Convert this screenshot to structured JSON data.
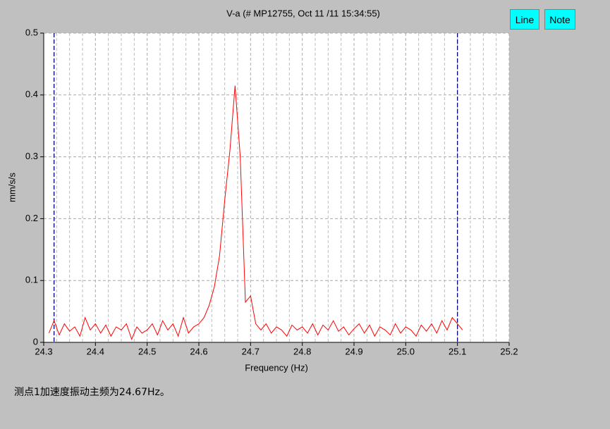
{
  "chart_data": {
    "type": "line",
    "title": "V-a  (# MP12755, Oct 11 /11 15:34:55)",
    "x_label": "Frequency (Hz)",
    "y_label": "mm/s/s",
    "x": [
      24.31,
      24.32,
      24.33,
      24.34,
      24.35,
      24.36,
      24.37,
      24.38,
      24.39,
      24.4,
      24.41,
      24.42,
      24.43,
      24.44,
      24.45,
      24.46,
      24.47,
      24.48,
      24.49,
      24.5,
      24.51,
      24.52,
      24.53,
      24.54,
      24.55,
      24.56,
      24.57,
      24.58,
      24.59,
      24.6,
      24.61,
      24.62,
      24.63,
      24.64,
      24.65,
      24.66,
      24.67,
      24.68,
      24.69,
      24.7,
      24.71,
      24.72,
      24.73,
      24.74,
      24.75,
      24.76,
      24.77,
      24.78,
      24.79,
      24.8,
      24.81,
      24.82,
      24.83,
      24.84,
      24.85,
      24.86,
      24.87,
      24.88,
      24.89,
      24.9,
      24.91,
      24.92,
      24.93,
      24.94,
      24.95,
      24.96,
      24.97,
      24.98,
      24.99,
      25.0,
      25.01,
      25.02,
      25.03,
      25.04,
      25.05,
      25.06,
      25.07,
      25.08,
      25.09,
      25.1,
      25.11
    ],
    "series": [
      {
        "color": "#ff0000",
        "values": [
          0.015,
          0.035,
          0.012,
          0.03,
          0.018,
          0.025,
          0.01,
          0.04,
          0.02,
          0.03,
          0.015,
          0.028,
          0.01,
          0.025,
          0.02,
          0.03,
          0.005,
          0.025,
          0.015,
          0.02,
          0.03,
          0.012,
          0.035,
          0.02,
          0.03,
          0.01,
          0.04,
          0.015,
          0.025,
          0.03,
          0.04,
          0.06,
          0.09,
          0.14,
          0.23,
          0.31,
          0.415,
          0.3,
          0.065,
          0.075,
          0.03,
          0.02,
          0.03,
          0.015,
          0.025,
          0.02,
          0.01,
          0.028,
          0.02,
          0.025,
          0.015,
          0.03,
          0.012,
          0.028,
          0.02,
          0.035,
          0.018,
          0.025,
          0.012,
          0.022,
          0.03,
          0.015,
          0.028,
          0.01,
          0.025,
          0.02,
          0.012,
          0.03,
          0.015,
          0.025,
          0.02,
          0.01,
          0.028,
          0.018,
          0.03,
          0.015,
          0.035,
          0.02,
          0.04,
          0.03,
          0.02
        ]
      }
    ],
    "xlim": [
      24.3,
      25.2
    ],
    "ylim": [
      0,
      0.5
    ],
    "xticks": [
      24.3,
      24.4,
      24.5,
      24.6,
      24.7,
      24.8,
      24.9,
      {
        "value": 25,
        "label": "25.0"
      },
      25.1,
      25.2
    ],
    "yticks": [
      0,
      0.1,
      0.2,
      0.3,
      0.4,
      0.5
    ],
    "cursors": [
      24.32,
      25.1
    ],
    "grid": true
  },
  "buttons": [
    "Line",
    "Note"
  ],
  "note": "测点1加速度振动主频为24.67Hz。"
}
